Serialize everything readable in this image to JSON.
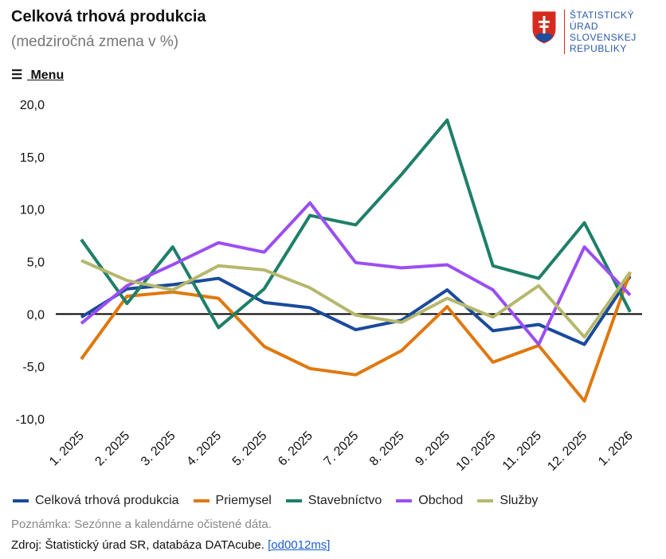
{
  "header": {
    "title": "Celková trhová produkcia",
    "subtitle": "(medziročná zmena v %)",
    "logo_lines": [
      "ŠTATISTICKÝ",
      "ÚRAD",
      "SLOVENSKEJ",
      "REPUBLIKY"
    ],
    "menu": "Menu"
  },
  "chart_data": {
    "type": "line",
    "categories": [
      "1. 2025",
      "2. 2025",
      "3. 2025",
      "4. 2025",
      "5. 2025",
      "6. 2025",
      "7. 2025",
      "8. 2025",
      "9. 2025",
      "10. 2025",
      "11. 2025",
      "12. 2025",
      "1. 2026"
    ],
    "series": [
      {
        "name": "Celková trhová produkcia",
        "color": "#1a4a9a",
        "values": [
          -0.3,
          2.4,
          2.8,
          3.4,
          1.1,
          0.6,
          -1.5,
          -0.6,
          2.3,
          -1.6,
          -1.0,
          -2.9,
          3.6
        ]
      },
      {
        "name": "Priemysel",
        "color": "#e0780e",
        "values": [
          -4.3,
          1.7,
          2.1,
          1.5,
          -3.1,
          -5.2,
          -5.8,
          -3.5,
          0.7,
          -4.6,
          -3.0,
          -8.3,
          4.0
        ]
      },
      {
        "name": "Stavebníctvo",
        "color": "#1e7f68",
        "values": [
          7.1,
          1.0,
          6.4,
          -1.3,
          2.4,
          9.4,
          8.5,
          13.3,
          18.5,
          4.6,
          3.4,
          8.7,
          0.2
        ]
      },
      {
        "name": "Obchod",
        "color": "#9b4ef2",
        "values": [
          -0.9,
          2.7,
          4.7,
          6.8,
          5.9,
          10.6,
          4.9,
          4.4,
          4.7,
          2.3,
          -2.9,
          6.4,
          1.8
        ]
      },
      {
        "name": "Služby",
        "color": "#b5b86c",
        "values": [
          5.1,
          3.2,
          2.3,
          4.6,
          4.2,
          2.5,
          -0.1,
          -0.8,
          1.5,
          -0.3,
          2.7,
          -2.2,
          4.0
        ]
      }
    ],
    "ylim": [
      -10,
      20
    ],
    "yticks": [
      {
        "value": -10,
        "label": "-10,0"
      },
      {
        "value": -5,
        "label": "-5,0"
      },
      {
        "value": 0,
        "label": "0,0"
      },
      {
        "value": 5,
        "label": "5,0"
      },
      {
        "value": 10,
        "label": "10,0"
      },
      {
        "value": 15,
        "label": "15,0"
      },
      {
        "value": 20,
        "label": "20,0"
      }
    ]
  },
  "footer": {
    "note": "Poznámka: Sezónne a kalendárne očistené dáta.",
    "source": "Zdroj: Štatistický úrad SR, databáza DATAcube.",
    "link": "[od0012ms]"
  }
}
